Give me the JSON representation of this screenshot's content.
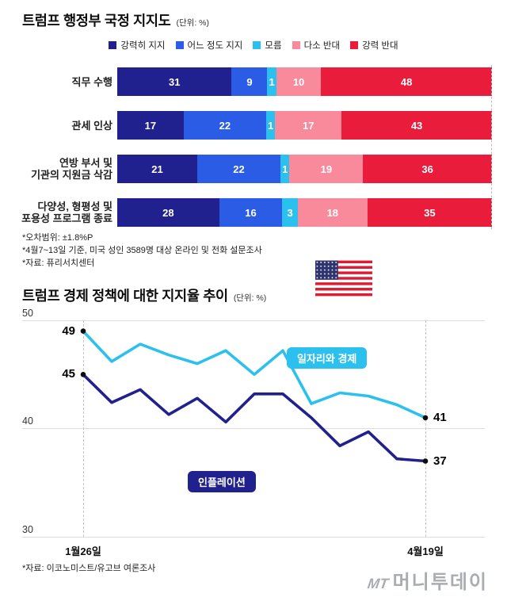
{
  "bar_section": {
    "title": "트럼프 행정부 국정 지지도",
    "unit": "(단위: %)",
    "legend": [
      {
        "label": "강력히 지지",
        "color": "#20218f"
      },
      {
        "label": "어느 정도 지지",
        "color": "#2b5ce6"
      },
      {
        "label": "모름",
        "color": "#2bc0ee"
      },
      {
        "label": "다소 반대",
        "color": "#f98a9b"
      },
      {
        "label": "강력 반대",
        "color": "#e91c3c"
      }
    ],
    "footnotes": [
      "*오차범위: ±1.8%P",
      "*4월7~13일 기준, 미국 성인 3589명 대상 온라인 및 전화 설문조사",
      "*자료: 퓨리서치센터"
    ]
  },
  "line_section": {
    "title": "트럼프 경제 정책에 대한 지지율 추이",
    "unit": "(단위: %)",
    "footnote": "*자료: 이코노미스트/유고브 여론조사"
  },
  "logo": {
    "mt": "MT",
    "name": "머니투데이"
  },
  "chart_data": [
    {
      "type": "bar",
      "stacked": true,
      "orientation": "horizontal",
      "title": "트럼프 행정부 국정 지지도",
      "unit": "%",
      "xlim": [
        0,
        100
      ],
      "categories": [
        "직무 수행",
        "관세 인상",
        "연방 부서 및\n기관의 지원금 삭감",
        "다양성, 형평성 및\n포용성 프로그램 종료"
      ],
      "series": [
        {
          "name": "강력히 지지",
          "color": "#20218f",
          "values": [
            31,
            17,
            21,
            28
          ]
        },
        {
          "name": "어느 정도 지지",
          "color": "#2b5ce6",
          "values": [
            9,
            22,
            22,
            16
          ]
        },
        {
          "name": "모름",
          "color": "#2bc0ee",
          "values": [
            1,
            1,
            1,
            3
          ]
        },
        {
          "name": "다소 반대",
          "color": "#f98a9b",
          "values": [
            10,
            17,
            19,
            18
          ]
        },
        {
          "name": "강력 반대",
          "color": "#e91c3c",
          "values": [
            48,
            43,
            36,
            35
          ]
        }
      ]
    },
    {
      "type": "line",
      "title": "트럼프 경제 정책에 대한 지지율 추이",
      "unit": "%",
      "ylim": [
        30,
        52
      ],
      "yticks": [
        50,
        40,
        30
      ],
      "grid": "horizontal",
      "x_range_labels": [
        "1월26일",
        "4월19일"
      ],
      "series": [
        {
          "name": "일자리와 경제",
          "color": "#2bc0ee",
          "values": [
            49,
            46.2,
            47.8,
            46.8,
            46,
            47.2,
            45,
            47.2,
            42.3,
            43.3,
            43,
            42.2,
            41
          ]
        },
        {
          "name": "인플레이션",
          "color": "#20218f",
          "values": [
            45,
            42.4,
            43.6,
            41.3,
            42.8,
            40.6,
            43.2,
            43.2,
            41,
            38.4,
            39.7,
            37.2,
            37
          ]
        }
      ]
    }
  ]
}
